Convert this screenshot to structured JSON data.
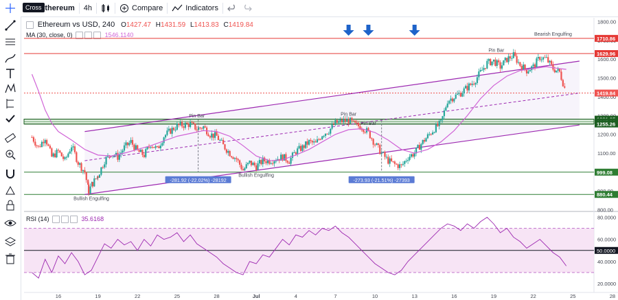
{
  "toolbar": {
    "symbol": "Ethereum",
    "interval": "4h",
    "compare_label": "Compare",
    "indicators_label": "Indicators"
  },
  "tooltip": {
    "cross": "Cross"
  },
  "legend": {
    "title": "Ethereum vs USD, 240",
    "open_label": "O",
    "open": "1427.47",
    "high_label": "H",
    "high": "1431.59",
    "low_label": "L",
    "low": "1413.83",
    "close_label": "C",
    "close": "1419.84",
    "ma_label": "MA (30, close, 0)",
    "ma_value": "1546.1140"
  },
  "rsi_legend": {
    "label": "RSI (14)",
    "value": "35.6168"
  },
  "colors": {
    "up": "#26a69a",
    "down": "#ef5350",
    "ma": "#d063d6",
    "channel": "#9c27b0",
    "support": "#2e7d32",
    "resistance": "#e53935",
    "rsi": "#9c27b0",
    "rsi_band": "#f3d9f1"
  },
  "chart_data": {
    "type": "candlestick",
    "y_axis": {
      "ticks": [
        800,
        900,
        1000,
        1100,
        1200,
        1300,
        1400,
        1500,
        1600,
        1700,
        1800
      ],
      "tick_labels": [
        "800.00",
        "900.00",
        "1000.00",
        "1100.00",
        "1200.00",
        "1300.00",
        "1400.00",
        "1500.00",
        "1600.00",
        "1700.00",
        "1800.00"
      ],
      "range": [
        790,
        1820
      ]
    },
    "x_axis": {
      "tick_labels": [
        "16",
        "19",
        "22",
        "25",
        "28",
        "Jul",
        "4",
        "7",
        "10",
        "13",
        "16",
        "19",
        "22",
        "25",
        "28"
      ]
    },
    "close_path": [
      [
        14.0,
        1185
      ],
      [
        14.5,
        1130
      ],
      [
        15.0,
        1185
      ],
      [
        15.5,
        1080
      ],
      [
        16.0,
        1110
      ],
      [
        16.5,
        1060
      ],
      [
        17.0,
        1140
      ],
      [
        17.5,
        1050
      ],
      [
        18.0,
        1000
      ],
      [
        18.3,
        900
      ],
      [
        18.6,
        940
      ],
      [
        19.0,
        980
      ],
      [
        19.5,
        1060
      ],
      [
        20.0,
        1100
      ],
      [
        20.5,
        1080
      ],
      [
        21.0,
        1130
      ],
      [
        21.5,
        1160
      ],
      [
        22.0,
        1110
      ],
      [
        22.5,
        1090
      ],
      [
        23.0,
        1150
      ],
      [
        23.5,
        1120
      ],
      [
        24.0,
        1190
      ],
      [
        24.5,
        1220
      ],
      [
        25.0,
        1245
      ],
      [
        25.5,
        1250
      ],
      [
        26.0,
        1255
      ],
      [
        26.5,
        1230
      ],
      [
        27.0,
        1240
      ],
      [
        27.5,
        1200
      ],
      [
        28.0,
        1190
      ],
      [
        28.5,
        1140
      ],
      [
        29.0,
        1100
      ],
      [
        29.5,
        1070
      ],
      [
        30.0,
        1010
      ],
      [
        30.5,
        1050
      ],
      [
        31.0,
        1030
      ],
      [
        31.5,
        1060
      ],
      [
        32.0,
        1060
      ],
      [
        32.5,
        1070
      ],
      [
        33.0,
        1080
      ],
      [
        33.5,
        1060
      ],
      [
        34.0,
        1110
      ],
      [
        34.5,
        1130
      ],
      [
        35.0,
        1160
      ],
      [
        35.5,
        1150
      ],
      [
        36.0,
        1200
      ],
      [
        36.5,
        1220
      ],
      [
        37.0,
        1260
      ],
      [
        37.5,
        1270
      ],
      [
        38.0,
        1275
      ],
      [
        38.5,
        1250
      ],
      [
        39.0,
        1240
      ],
      [
        39.5,
        1210
      ],
      [
        40.0,
        1150
      ],
      [
        40.5,
        1100
      ],
      [
        41.0,
        1060
      ],
      [
        41.5,
        1040
      ],
      [
        42.0,
        1030
      ],
      [
        42.5,
        1080
      ],
      [
        43.0,
        1100
      ],
      [
        43.5,
        1150
      ],
      [
        44.0,
        1190
      ],
      [
        44.5,
        1230
      ],
      [
        45.0,
        1260
      ],
      [
        45.5,
        1380
      ],
      [
        46.0,
        1400
      ],
      [
        46.5,
        1420
      ],
      [
        47.0,
        1450
      ],
      [
        47.5,
        1480
      ],
      [
        48.0,
        1530
      ],
      [
        48.5,
        1580
      ],
      [
        49.0,
        1590
      ],
      [
        49.5,
        1560
      ],
      [
        50.0,
        1600
      ],
      [
        50.5,
        1620
      ],
      [
        51.0,
        1570
      ],
      [
        51.5,
        1540
      ],
      [
        52.0,
        1560
      ],
      [
        52.5,
        1610
      ],
      [
        53.0,
        1600
      ],
      [
        53.5,
        1550
      ],
      [
        54.0,
        1530
      ],
      [
        54.5,
        1420
      ]
    ],
    "ma_path": [
      [
        14.0,
        1520
      ],
      [
        14.5,
        1430
      ],
      [
        15.0,
        1330
      ],
      [
        15.5,
        1260
      ],
      [
        16.0,
        1215
      ],
      [
        17.0,
        1170
      ],
      [
        18.0,
        1120
      ],
      [
        19.0,
        1090
      ],
      [
        20.0,
        1085
      ],
      [
        21.0,
        1100
      ],
      [
        22.0,
        1120
      ],
      [
        23.0,
        1140
      ],
      [
        24.0,
        1165
      ],
      [
        25.0,
        1190
      ],
      [
        26.0,
        1205
      ],
      [
        27.0,
        1220
      ],
      [
        28.0,
        1215
      ],
      [
        29.0,
        1190
      ],
      [
        30.0,
        1140
      ],
      [
        31.0,
        1085
      ],
      [
        32.0,
        1060
      ],
      [
        33.0,
        1065
      ],
      [
        34.0,
        1090
      ],
      [
        35.0,
        1120
      ],
      [
        36.0,
        1160
      ],
      [
        37.0,
        1200
      ],
      [
        38.0,
        1225
      ],
      [
        39.0,
        1230
      ],
      [
        40.0,
        1210
      ],
      [
        41.0,
        1170
      ],
      [
        42.0,
        1120
      ],
      [
        43.0,
        1100
      ],
      [
        44.0,
        1120
      ],
      [
        45.0,
        1160
      ],
      [
        46.0,
        1220
      ],
      [
        47.0,
        1300
      ],
      [
        48.0,
        1390
      ],
      [
        49.0,
        1460
      ],
      [
        50.0,
        1510
      ],
      [
        51.0,
        1540
      ],
      [
        52.0,
        1550
      ],
      [
        53.0,
        1560
      ],
      [
        54.0,
        1550
      ],
      [
        54.5,
        1546
      ]
    ],
    "channel": {
      "upper": [
        [
          18.0,
          1215
        ],
        [
          55.5,
          1590
        ]
      ],
      "lower": [
        [
          18.0,
          880
        ],
        [
          55.5,
          1250
        ]
      ],
      "mid": [
        [
          18.0,
          1060
        ],
        [
          55.5,
          1420
        ]
      ]
    },
    "horizontal_levels": [
      {
        "value": 1710.86,
        "label": "1710.86",
        "kind": "resistance"
      },
      {
        "value": 1629.96,
        "label": "1629.96",
        "kind": "resistance"
      },
      {
        "value": 1419.84,
        "label": "1419.84",
        "kind": "last-price"
      },
      {
        "value": 1281.05,
        "label": "1281.05",
        "kind": "zone"
      },
      {
        "value": 1267.3,
        "label": "1267.30",
        "kind": "zone"
      },
      {
        "value": 1255.26,
        "label": "1255.26",
        "kind": "zone"
      },
      {
        "value": 999.08,
        "label": "999.08",
        "kind": "support"
      },
      {
        "value": 880.44,
        "label": "880.44",
        "kind": "support"
      }
    ],
    "annotations": [
      {
        "text": "Pin Bar",
        "x": 26.5,
        "y": 1290
      },
      {
        "text": "Pin Bar",
        "x": 38.0,
        "y": 1300
      },
      {
        "text": "Pin Bar",
        "x": 39.5,
        "y": 1250
      },
      {
        "text": "Pin Bar",
        "x": 49.2,
        "y": 1640
      },
      {
        "text": "Bearish Engulfing",
        "x": 53.5,
        "y": 1725
      },
      {
        "text": "Bullish Engulfing",
        "x": 18.5,
        "y": 850
      },
      {
        "text": "Bullish Engulfing",
        "x": 31.0,
        "y": 975
      }
    ],
    "measures": [
      {
        "text": "-281.92 (-22.02%) -28192",
        "x_from": 26.6,
        "y_from": 1280,
        "y_to": 999
      },
      {
        "text": "-273.93 (-21.51%) -27393",
        "x_from": 40.5,
        "y_from": 1274,
        "y_to": 999
      }
    ],
    "arrows_x": [
      38.0,
      39.5,
      43.0
    ],
    "rsi": {
      "ticks": [
        20,
        40,
        60,
        80
      ],
      "tick_labels": [
        "20.0000",
        "40.0000",
        "60.0000",
        "80.0000"
      ],
      "range": [
        12,
        84
      ],
      "upper_band": 70,
      "lower_band": 30,
      "mid_line": 50,
      "mid_label": "50.0000",
      "values": [
        [
          14.0,
          30
        ],
        [
          14.5,
          25
        ],
        [
          15.0,
          42
        ],
        [
          15.5,
          30
        ],
        [
          16.0,
          45
        ],
        [
          16.5,
          38
        ],
        [
          17.0,
          48
        ],
        [
          17.5,
          40
        ],
        [
          18.0,
          28
        ],
        [
          18.5,
          32
        ],
        [
          19.0,
          44
        ],
        [
          19.5,
          56
        ],
        [
          20.0,
          52
        ],
        [
          20.5,
          60
        ],
        [
          21.0,
          55
        ],
        [
          21.5,
          58
        ],
        [
          22.0,
          50
        ],
        [
          22.5,
          60
        ],
        [
          23.0,
          54
        ],
        [
          23.5,
          64
        ],
        [
          24.0,
          60
        ],
        [
          24.5,
          62
        ],
        [
          25.0,
          66
        ],
        [
          25.5,
          58
        ],
        [
          26.0,
          64
        ],
        [
          26.5,
          56
        ],
        [
          27.0,
          52
        ],
        [
          27.5,
          48
        ],
        [
          28.0,
          44
        ],
        [
          28.5,
          38
        ],
        [
          29.0,
          34
        ],
        [
          29.5,
          30
        ],
        [
          30.0,
          28
        ],
        [
          30.5,
          40
        ],
        [
          31.0,
          38
        ],
        [
          31.5,
          46
        ],
        [
          32.0,
          44
        ],
        [
          32.5,
          52
        ],
        [
          33.0,
          60
        ],
        [
          33.5,
          55
        ],
        [
          34.0,
          64
        ],
        [
          34.5,
          62
        ],
        [
          35.0,
          68
        ],
        [
          35.5,
          64
        ],
        [
          36.0,
          70
        ],
        [
          36.5,
          68
        ],
        [
          37.0,
          72
        ],
        [
          37.5,
          66
        ],
        [
          38.0,
          62
        ],
        [
          38.5,
          56
        ],
        [
          39.0,
          50
        ],
        [
          39.5,
          44
        ],
        [
          40.0,
          38
        ],
        [
          40.5,
          34
        ],
        [
          41.0,
          30
        ],
        [
          41.5,
          28
        ],
        [
          42.0,
          32
        ],
        [
          42.5,
          40
        ],
        [
          43.0,
          46
        ],
        [
          43.5,
          52
        ],
        [
          44.0,
          58
        ],
        [
          44.5,
          64
        ],
        [
          45.0,
          70
        ],
        [
          45.5,
          74
        ],
        [
          46.0,
          72
        ],
        [
          46.5,
          68
        ],
        [
          47.0,
          74
        ],
        [
          47.5,
          70
        ],
        [
          48.0,
          76
        ],
        [
          48.5,
          80
        ],
        [
          49.0,
          74
        ],
        [
          49.5,
          66
        ],
        [
          50.0,
          70
        ],
        [
          50.5,
          62
        ],
        [
          51.0,
          58
        ],
        [
          51.5,
          52
        ],
        [
          52.0,
          56
        ],
        [
          52.5,
          60
        ],
        [
          53.0,
          54
        ],
        [
          53.5,
          48
        ],
        [
          54.0,
          44
        ],
        [
          54.5,
          36
        ]
      ]
    }
  }
}
